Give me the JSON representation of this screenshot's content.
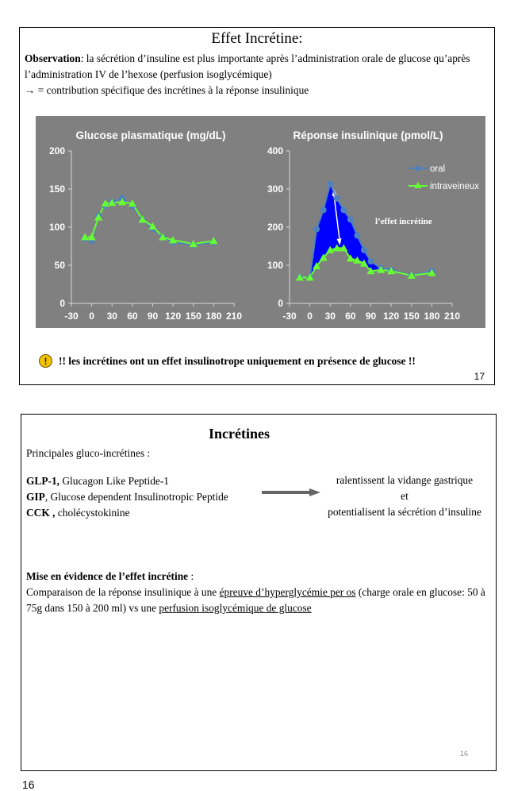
{
  "slide1": {
    "title": "Effet Incrétine:",
    "obs_label": "Observation",
    "obs_text": ": la sécrétion d’insuline est plus importante après l’administration orale de glucose qu’après l’administration IV de l’hexose (perfusion isoglycémique)",
    "arrow_line": "→ = contribution spécifique des incrétines à la réponse insulinique",
    "warning": "!! les incrétines ont un effet insulinotrope uniquement en présence de glucose !!",
    "page_number": "17"
  },
  "chart_data": [
    {
      "type": "line",
      "title": "Glucose plasmatique (mg/dL)",
      "xticks": [
        -30,
        0,
        30,
        60,
        90,
        120,
        150,
        180,
        210
      ],
      "yticks": [
        0,
        50,
        100,
        150,
        200
      ],
      "xlim": [
        -30,
        210
      ],
      "ylim": [
        0,
        200
      ],
      "grid": false,
      "series": [
        {
          "name": "oral",
          "color": "#4f81bd",
          "marker": "circle",
          "x": [
            -10,
            0,
            10,
            20,
            30,
            45,
            60,
            75,
            90,
            105,
            120,
            150,
            180
          ],
          "y": [
            85,
            82,
            115,
            128,
            133,
            138,
            128,
            110,
            98,
            87,
            80,
            77,
            80
          ]
        },
        {
          "name": "intraveineux",
          "color": "#66ff33",
          "marker": "triangle",
          "x": [
            -10,
            0,
            10,
            20,
            30,
            45,
            60,
            75,
            90,
            105,
            120,
            150,
            180
          ],
          "y": [
            87,
            87,
            113,
            131,
            132,
            133,
            131,
            110,
            101,
            87,
            83,
            78,
            82
          ]
        }
      ]
    },
    {
      "type": "line",
      "title": "Réponse insulinique (pmol/L)",
      "xticks": [
        -30,
        0,
        30,
        60,
        90,
        120,
        150,
        180,
        210
      ],
      "yticks": [
        0,
        100,
        200,
        300,
        400
      ],
      "xlim": [
        -30,
        210
      ],
      "ylim": [
        0,
        400
      ],
      "grid": false,
      "legend": "top-right",
      "annotation": "l’effet incrétine",
      "fill_between_color": "#0000ff",
      "series": [
        {
          "name": "oral",
          "color": "#4f81bd",
          "marker": "circle",
          "x": [
            -15,
            0,
            10,
            20,
            30,
            40,
            50,
            60,
            70,
            80,
            90,
            105,
            120,
            150,
            180
          ],
          "y": [
            68,
            68,
            195,
            245,
            313,
            275,
            245,
            220,
            178,
            140,
            110,
            92,
            88,
            73,
            85
          ]
        },
        {
          "name": "intraveineux",
          "color": "#66ff33",
          "marker": "triangle",
          "x": [
            -15,
            0,
            10,
            20,
            30,
            40,
            50,
            60,
            70,
            80,
            90,
            105,
            120,
            150,
            180
          ],
          "y": [
            68,
            68,
            98,
            120,
            140,
            145,
            145,
            118,
            113,
            105,
            85,
            88,
            85,
            73,
            80
          ]
        }
      ]
    }
  ],
  "slide2": {
    "title": "Incrétines",
    "intro": "Principales gluco-incrétines :",
    "items": [
      {
        "abbr": "GLP-1,",
        "desc": " Glucagon Like Peptide-1"
      },
      {
        "abbr": "GIP",
        "desc": ", Glucose dependent Insulinotropic Peptide"
      },
      {
        "abbr": "CCK ,",
        "desc": " cholécystokinine"
      }
    ],
    "effects": [
      "ralentissent la vidange gastrique",
      "et",
      "potentialisent la sécrétion d’insuline"
    ],
    "mise_label": "Mise en évidence de l’effet incrétine",
    "mise_suffix": " :",
    "comp_before": "Comparaison de la réponse insulinique à une ",
    "comp_u1": "épreuve d’hyperglycémie per os",
    "comp_middle": " (charge orale en glucose: 50 à 75g dans 150 à 200 ml) vs une ",
    "comp_u2": "perfusion isoglycémique de glucose",
    "page_number": "16"
  },
  "footer": {
    "page_number": "16"
  }
}
